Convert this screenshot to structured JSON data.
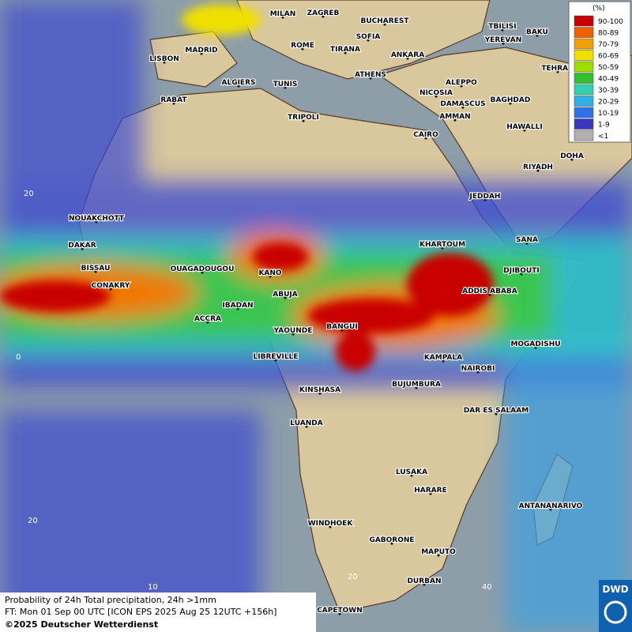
{
  "cities": [
    "MILAN",
    "ZAGREB",
    "BUCHAREST",
    "TBILISI",
    "BAKU",
    "MADRID",
    "ROME",
    "SOFIA",
    "YEREVAN",
    "LISBON",
    "TIRANA",
    "ANKARA",
    "TEHRAN",
    "ATHENS",
    "ALGIERS",
    "TUNIS",
    "ALEPPO",
    "RABAT",
    "NICOSIA",
    "BAGHDAD",
    "DAMASCUS",
    "AMMAN",
    "TRIPOLI",
    "HAWALLI",
    "CAIRO",
    "DOHA",
    "RIYADH",
    "JEDDAH",
    "NOUAKCHOTT",
    "KHARTOUM",
    "SANA",
    "DAKAR",
    "BISSAU",
    "OUAGADOUGOU",
    "KANO",
    "DJIBOUTI",
    "CONAKRY",
    "ABUJA",
    "ADDIS ABABA",
    "IBADAN",
    "ACCRA",
    "BANGUI",
    "YAOUNDE",
    "MOGADISHU",
    "LIBREVILLE",
    "KAMPALA",
    "NAIROBI",
    "BUJUMBURA",
    "KINSHASA",
    "DAR ES SALAAM",
    "LUANDA",
    "LUSAKA",
    "HARARE",
    "ANTANANARIVO",
    "WINDHOEK",
    "GABORONE",
    "MAPUTO",
    "DURBAN",
    "CAPETOWN"
  ],
  "grid_labels": [
    "20",
    "0",
    "20",
    "10",
    "20",
    "40"
  ],
  "legend": {
    "title": "(%)",
    "items": [
      {
        "label": "90-100",
        "color": "#c80000"
      },
      {
        "label": "80-89",
        "color": "#f06000"
      },
      {
        "label": "70-79",
        "color": "#f0a000"
      },
      {
        "label": "60-69",
        "color": "#f0e000"
      },
      {
        "label": "50-59",
        "color": "#a0dc00"
      },
      {
        "label": "40-49",
        "color": "#30c030"
      },
      {
        "label": "30-39",
        "color": "#30d0b0"
      },
      {
        "label": "20-29",
        "color": "#30b0e0"
      },
      {
        "label": "10-19",
        "color": "#3070e8"
      },
      {
        "label": "1-9",
        "color": "#3a38c0"
      },
      {
        "label": "<1",
        "color": "#b0b0b0"
      }
    ]
  },
  "footer": [
    "Probability of 24h Total precipitation, 24h >1mm",
    "FT: Mon 01 Sep 00 UTC [ICON EPS 2025 Aug 25 12UTC +156h]",
    "©2025 Deutscher Wetterdienst"
  ],
  "logo": "DWD"
}
